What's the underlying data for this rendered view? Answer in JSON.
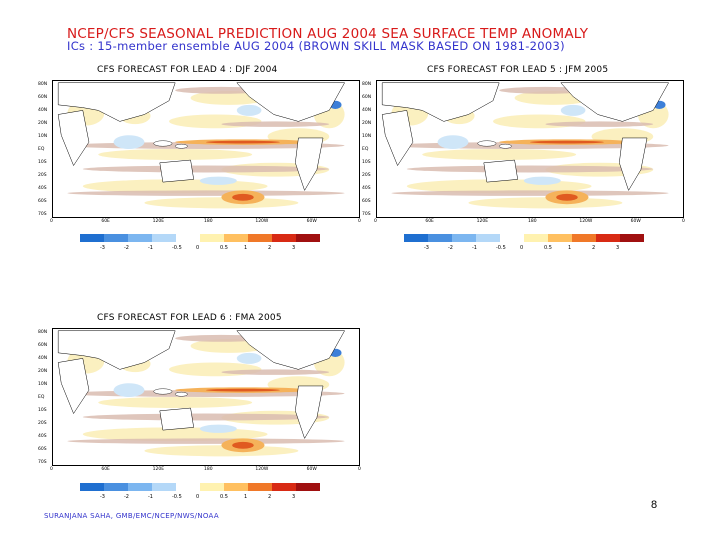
{
  "title": "NCEP/CFS SEASONAL PREDICTION AUG 2004 SEA SURFACE TEMP ANOMALY",
  "subtitle": "ICs : 15-member ensemble AUG 2004 (BROWN SKILL MASK BASED ON 1981-2003)",
  "panels": [
    {
      "title": "CFS FORECAST FOR LEAD 4 : DJF 2004"
    },
    {
      "title": "CFS FORECAST FOR LEAD 5 : JFM 2005"
    },
    {
      "title": "CFS FORECAST FOR LEAD 6 : FMA 2005"
    }
  ],
  "lat_labels": [
    "80N",
    "60N",
    "40N",
    "20N",
    "10N",
    "EQ",
    "10S",
    "20S",
    "40S",
    "60S",
    "70S"
  ],
  "lon_labels": [
    "0",
    "60E",
    "120E",
    "180",
    "120W",
    "60W",
    "0"
  ],
  "colorbar": {
    "labels": [
      "-3",
      "-2",
      "-1",
      "-0.5",
      "0",
      "0.5",
      "1",
      "2",
      "3"
    ],
    "colors": [
      "#1f6fd0",
      "#4a90e0",
      "#7cb6f0",
      "#b4d8f8",
      "#ffffff",
      "#fff2b0",
      "#ffc060",
      "#f07828",
      "#d82a14",
      "#a01010"
    ]
  },
  "footer": "SURANJANA SAHA, GMB/EMC/NCEP/NWS/NOAA",
  "page_number": "8"
}
